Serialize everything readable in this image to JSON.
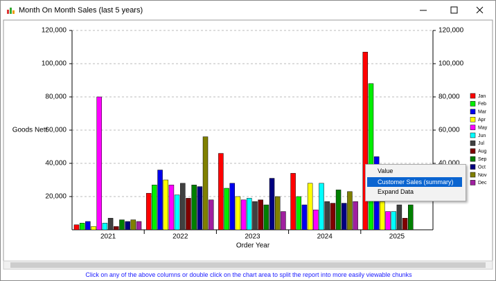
{
  "window": {
    "title": "Month On Month Sales (last 5 years)"
  },
  "chart_data": {
    "type": "bar",
    "y_label": "Goods Nett",
    "x_label": "Order Year",
    "categories": [
      "2021",
      "2022",
      "2023",
      "2024",
      "2025"
    ],
    "series": [
      {
        "name": "Jan",
        "color": "#ff0000",
        "values": [
          3000,
          22000,
          46000,
          34000,
          107000
        ]
      },
      {
        "name": "Feb",
        "color": "#00ee00",
        "values": [
          4000,
          27000,
          25000,
          20000,
          88000
        ]
      },
      {
        "name": "Mar",
        "color": "#0000ee",
        "values": [
          5000,
          36000,
          28000,
          15000,
          44000
        ]
      },
      {
        "name": "Apr",
        "color": "#ffff00",
        "values": [
          2000,
          30000,
          20000,
          28000,
          17000
        ]
      },
      {
        "name": "May",
        "color": "#ff00ff",
        "values": [
          80000,
          27000,
          18000,
          12000,
          11000
        ]
      },
      {
        "name": "Jun",
        "color": "#00ffff",
        "values": [
          4000,
          21000,
          19000,
          28000,
          11000
        ]
      },
      {
        "name": "Jul",
        "color": "#404040",
        "values": [
          7000,
          28000,
          17000,
          17000,
          15000
        ]
      },
      {
        "name": "Aug",
        "color": "#800000",
        "values": [
          2000,
          19000,
          18000,
          16000,
          7000
        ]
      },
      {
        "name": "Sep",
        "color": "#008000",
        "values": [
          6000,
          27000,
          15000,
          24000,
          15000
        ]
      },
      {
        "name": "Oct",
        "color": "#000080",
        "values": [
          5000,
          26000,
          31000,
          16000,
          null
        ]
      },
      {
        "name": "Nov",
        "color": "#808000",
        "values": [
          6000,
          56000,
          20000,
          23000,
          null
        ]
      },
      {
        "name": "Dec",
        "color": "#a020a0",
        "values": [
          5000,
          18000,
          11000,
          17000,
          null
        ]
      }
    ],
    "ylim": [
      0,
      120000
    ],
    "yticks": [
      {
        "value": 20000,
        "label": "20,000"
      },
      {
        "value": 40000,
        "label": "40,000"
      },
      {
        "value": 60000,
        "label": "60,000"
      },
      {
        "value": 80000,
        "label": "80,000"
      },
      {
        "value": 100000,
        "label": "100,000"
      },
      {
        "value": 120000,
        "label": "120,000"
      }
    ],
    "grid": true
  },
  "context_menu": {
    "items": [
      "Value",
      "Customer Sales (summary)",
      "Expand Data"
    ],
    "highlighted": 1
  },
  "status": "Click on any of the above columns or double click on the chart area to split the report into more easily viewable chunks"
}
